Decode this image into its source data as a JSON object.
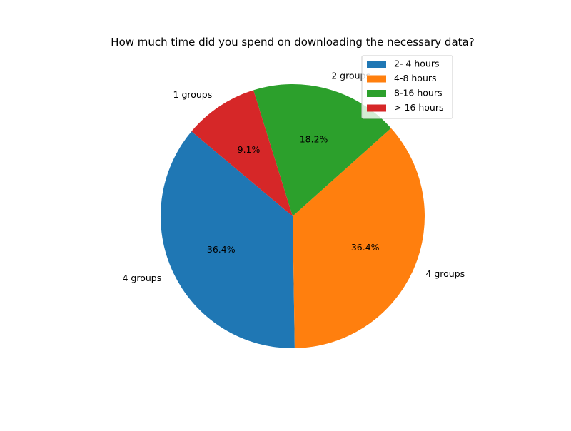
{
  "chart_data": {
    "type": "pie",
    "title": "How much time did you spend on downloading the necessary data?",
    "categories": [
      "2- 4 hours",
      "4-8 hours",
      "8-16 hours",
      "> 16 hours"
    ],
    "values": [
      4,
      4,
      2,
      1
    ],
    "slice_labels": [
      "4 groups",
      "4 groups",
      "2 groups",
      "1 groups"
    ],
    "percent_labels": [
      "36.4%",
      "36.4%",
      "18.2%",
      "9.1%"
    ],
    "colors": [
      "#1f77b4",
      "#ff7f0e",
      "#2ca02c",
      "#d62728"
    ],
    "start_angle_deg": 140,
    "direction": "counterclockwise",
    "legend": {
      "placement": "top-right",
      "entries": [
        "2- 4 hours",
        "4-8 hours",
        "8-16 hours",
        "> 16 hours"
      ]
    }
  }
}
